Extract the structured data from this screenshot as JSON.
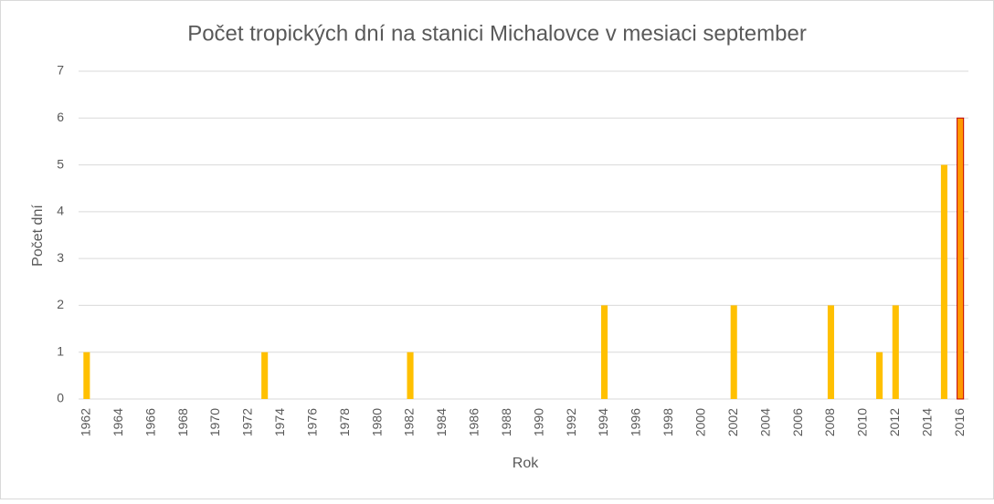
{
  "chart_data": {
    "type": "bar",
    "title": "Počet tropických dní na stanici Michalovce v mesiaci september",
    "x_label": "Rok",
    "y_label": "Počet dní",
    "categories": [
      "1962",
      null,
      "1964",
      null,
      "1966",
      null,
      "1968",
      null,
      "1970",
      null,
      "1972",
      null,
      "1974",
      null,
      "1976",
      null,
      "1978",
      null,
      "1980",
      null,
      "1982",
      null,
      "1984",
      null,
      "1986",
      null,
      "1988",
      null,
      "1990",
      null,
      "1992",
      null,
      "1994",
      null,
      "1996",
      null,
      "1998",
      null,
      "2000",
      null,
      "2002",
      null,
      "2004",
      null,
      "2006",
      null,
      "2008",
      null,
      "2010",
      null,
      "2012",
      null,
      "2014",
      null,
      "2016"
    ],
    "values": [
      1,
      0,
      0,
      0,
      0,
      0,
      0,
      0,
      0,
      0,
      0,
      1,
      0,
      0,
      0,
      0,
      0,
      0,
      0,
      0,
      1,
      0,
      0,
      0,
      0,
      0,
      0,
      0,
      0,
      0,
      0,
      0,
      2,
      0,
      0,
      0,
      0,
      0,
      0,
      0,
      2,
      0,
      0,
      0,
      0,
      0,
      2,
      0,
      0,
      1,
      2,
      0,
      0,
      5,
      6
    ],
    "color": "#FFC000",
    "highlight": {
      "index": 54,
      "color": "#FF9900",
      "border": "#C00000"
    },
    "ylim": [
      0,
      7
    ],
    "yticks": [
      0,
      1,
      2,
      3,
      4,
      5,
      6,
      7
    ],
    "grid": true
  }
}
